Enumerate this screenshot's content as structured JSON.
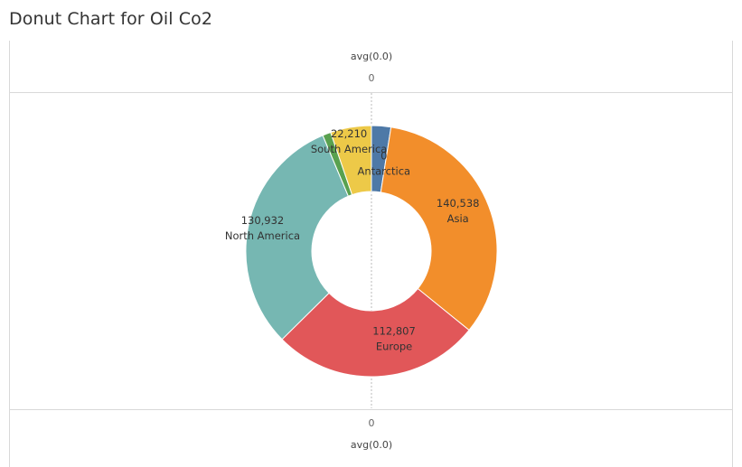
{
  "title": "Donut Chart for Oil Co2",
  "axis": {
    "top_label": "avg(0.0)",
    "top_tick": "0",
    "bottom_tick": "0",
    "bottom_label": "avg(0.0)"
  },
  "chart_data": {
    "type": "pie",
    "title": "Donut Chart for Oil Co2",
    "donut": true,
    "slices": [
      {
        "label": "",
        "value": 10500,
        "value_label": "",
        "color": "#4e79a7"
      },
      {
        "label": "Asia",
        "value": 140538,
        "value_label": "140,538",
        "color": "#f28e2b"
      },
      {
        "label": "Europe",
        "value": 112807,
        "value_label": "112,807",
        "color": "#e15759"
      },
      {
        "label": "North America",
        "value": 130932,
        "value_label": "130,932",
        "color": "#76b7b2"
      },
      {
        "label": "",
        "value": 4500,
        "value_label": "",
        "color": "#59a14f"
      },
      {
        "label": "South America",
        "value": 22210,
        "value_label": "22,210",
        "color": "#edc948"
      }
    ],
    "extra_labels": [
      {
        "label": "Antarctica",
        "value": 0,
        "value_label": "0"
      }
    ]
  }
}
